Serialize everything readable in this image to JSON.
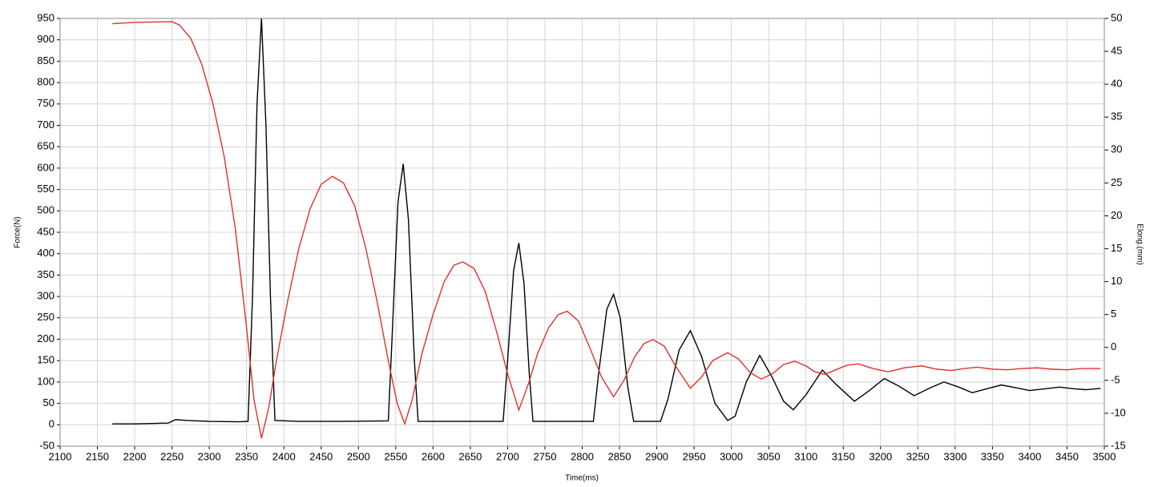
{
  "chart_data": {
    "type": "line",
    "xlabel": "Time(ms)",
    "ylabel": "Force(N)",
    "y2label": "Elong.(mm)",
    "xlim": [
      2100,
      3500
    ],
    "xticks": [
      2100,
      2150,
      2200,
      2250,
      2300,
      2350,
      2400,
      2450,
      2500,
      2550,
      2600,
      2650,
      2700,
      2750,
      2800,
      2850,
      2900,
      2950,
      3000,
      3050,
      3100,
      3150,
      3200,
      3250,
      3300,
      3350,
      3400,
      3450,
      3500
    ],
    "ylim": [
      -50,
      950
    ],
    "yticks": [
      -50,
      0,
      50,
      100,
      150,
      200,
      250,
      300,
      350,
      400,
      450,
      500,
      550,
      600,
      650,
      700,
      750,
      800,
      850,
      900,
      950
    ],
    "y2lim": [
      -15,
      50
    ],
    "y2ticks": [
      -15,
      -10,
      -5,
      0,
      5,
      10,
      15,
      20,
      25,
      30,
      35,
      40,
      45,
      50
    ],
    "grid": true,
    "series": [
      {
        "color": "#000000",
        "x": [
          2170,
          2200,
          2245,
          2255,
          2270,
          2300,
          2340,
          2352,
          2358,
          2364,
          2370,
          2376,
          2382,
          2388,
          2420,
          2480,
          2540,
          2545,
          2553,
          2560,
          2567,
          2575,
          2580,
          2620,
          2694,
          2700,
          2708,
          2715,
          2722,
          2729,
          2734,
          2780,
          2815,
          2822,
          2833,
          2842,
          2851,
          2861,
          2869,
          2905,
          2915,
          2930,
          2945,
          2960,
          2978,
          2995,
          3005,
          3020,
          3038,
          3055,
          3070,
          3083,
          3100,
          3122,
          3140,
          3165,
          3185,
          3205,
          3225,
          3245,
          3265,
          3285,
          3305,
          3323,
          3342,
          3362,
          3380,
          3400,
          3420,
          3440,
          3460,
          3475,
          3495
        ],
        "values": [
          2,
          2,
          4,
          12,
          10,
          8,
          7,
          8,
          300,
          750,
          950,
          700,
          300,
          10,
          8,
          8,
          9,
          200,
          520,
          610,
          480,
          150,
          8,
          8,
          8,
          150,
          360,
          425,
          330,
          120,
          8,
          8,
          8,
          120,
          270,
          305,
          250,
          90,
          8,
          8,
          60,
          175,
          220,
          160,
          50,
          10,
          20,
          100,
          162,
          110,
          55,
          35,
          70,
          128,
          95,
          55,
          80,
          108,
          90,
          68,
          85,
          100,
          88,
          75,
          84,
          93,
          87,
          80,
          84,
          88,
          84,
          82,
          85
        ]
      },
      {
        "color": "#e0302a",
        "axis": "y2",
        "x": [
          2170,
          2200,
          2250,
          2260,
          2275,
          2290,
          2305,
          2320,
          2335,
          2350,
          2360,
          2370,
          2380,
          2390,
          2405,
          2420,
          2435,
          2450,
          2465,
          2480,
          2495,
          2510,
          2525,
          2540,
          2552,
          2562,
          2572,
          2585,
          2600,
          2615,
          2628,
          2640,
          2655,
          2670,
          2685,
          2700,
          2715,
          2728,
          2740,
          2755,
          2768,
          2780,
          2795,
          2810,
          2826,
          2842,
          2856,
          2870,
          2883,
          2895,
          2910,
          2925,
          2945,
          2960,
          2975,
          2995,
          3010,
          3025,
          3040,
          3055,
          3070,
          3085,
          3100,
          3112,
          3125,
          3140,
          3155,
          3170,
          3190,
          3210,
          3232,
          3255,
          3275,
          3295,
          3312,
          3330,
          3350,
          3370,
          3390,
          3410,
          3430,
          3450,
          3470,
          3495
        ],
        "values": [
          49.2,
          49.4,
          49.5,
          49,
          47,
          43,
          37,
          29,
          18,
          3,
          -8,
          -13.8,
          -9,
          -2,
          7,
          15,
          21,
          24.8,
          26,
          25,
          21.5,
          15,
          7,
          -2,
          -8.5,
          -11.6,
          -8,
          -1,
          5,
          10,
          12.5,
          13,
          12,
          8.5,
          2.5,
          -4,
          -9.5,
          -5.5,
          -1,
          3,
          5,
          5.5,
          4,
          0,
          -4.5,
          -7.5,
          -5,
          -1.5,
          0.6,
          1.2,
          0.2,
          -2.8,
          -6.2,
          -4.5,
          -2,
          -0.8,
          -1.8,
          -3.8,
          -4.8,
          -4,
          -2.6,
          -2.1,
          -2.8,
          -3.7,
          -4.1,
          -3.4,
          -2.7,
          -2.5,
          -3.2,
          -3.7,
          -3.1,
          -2.8,
          -3.3,
          -3.5,
          -3.2,
          -3.0,
          -3.3,
          -3.4,
          -3.2,
          -3.1,
          -3.3,
          -3.4,
          -3.2,
          -3.2
        ]
      }
    ]
  }
}
